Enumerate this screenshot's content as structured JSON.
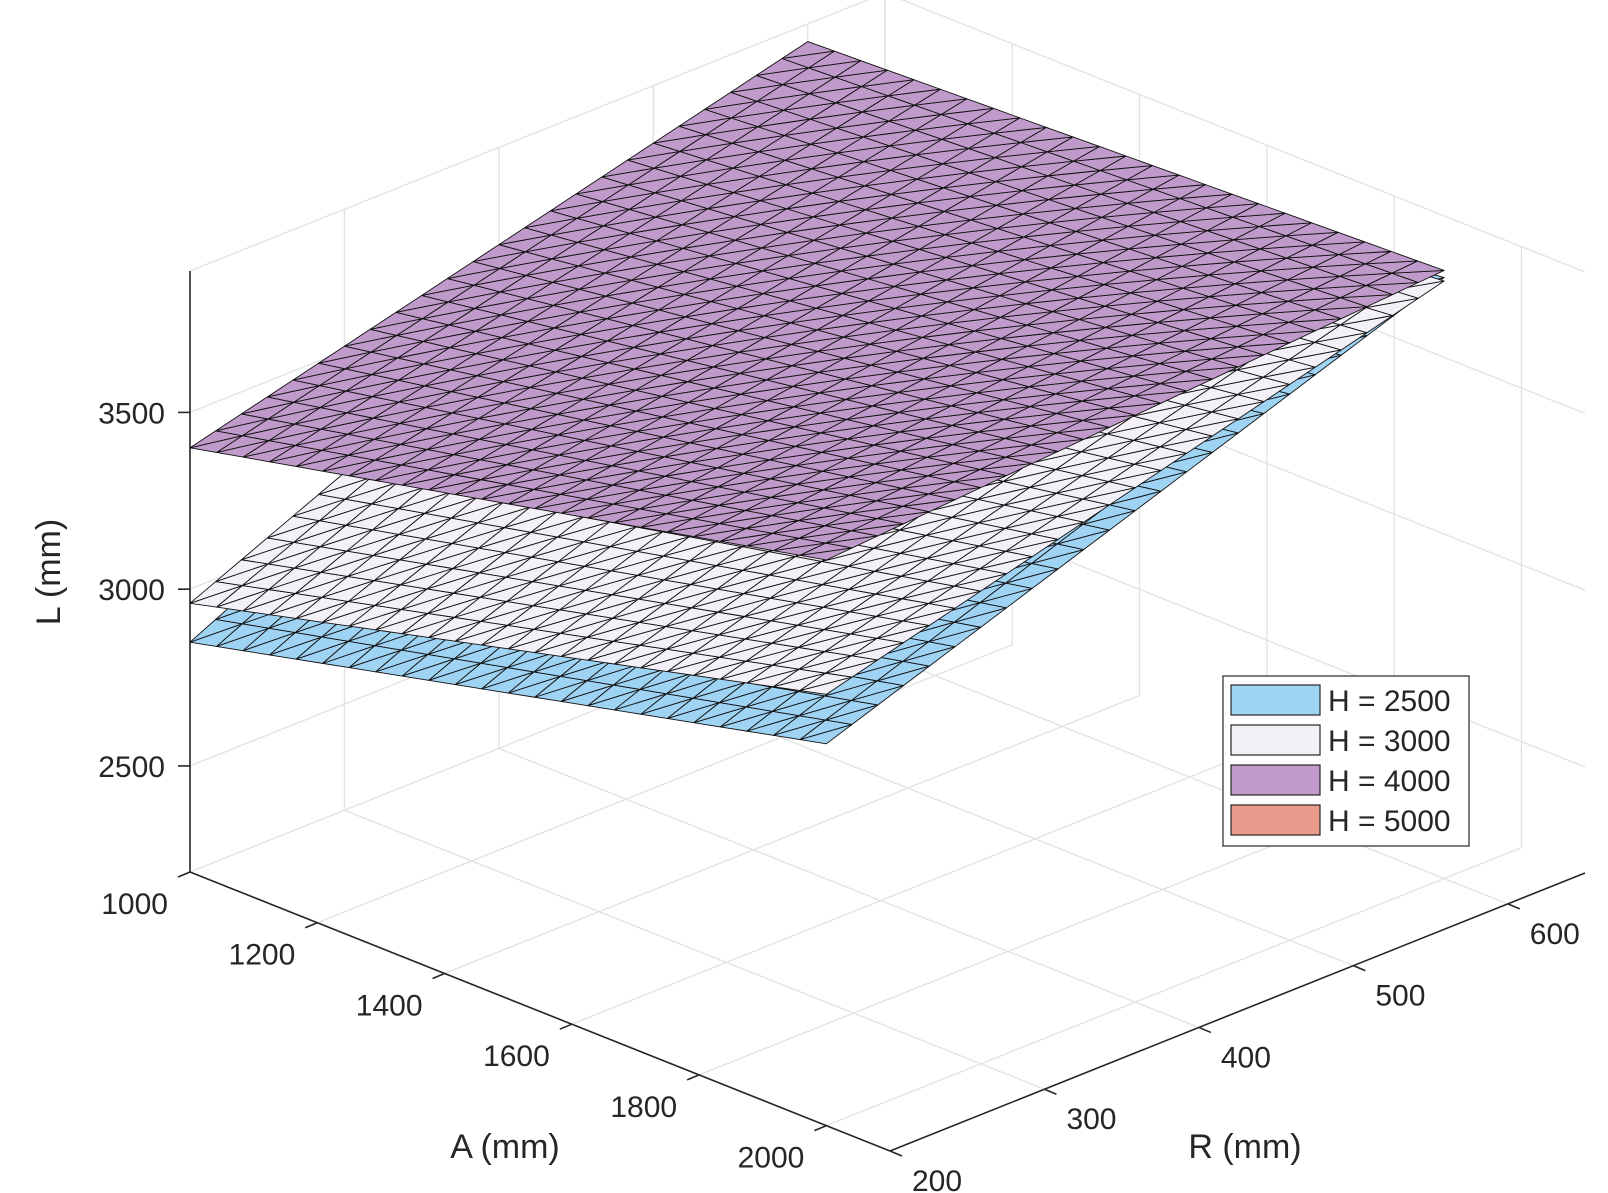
{
  "chart_data": {
    "type": "surface",
    "xlabel": "A (mm)",
    "ylabel": "R (mm)",
    "zlabel": "L (mm)",
    "xlim": [
      1000,
      2100
    ],
    "ylim": [
      200,
      650
    ],
    "zlim": [
      2200,
      3900
    ],
    "x_ticks": [
      1000,
      1200,
      1400,
      1600,
      1800,
      2000
    ],
    "y_ticks": [
      200,
      300,
      400,
      500,
      600
    ],
    "z_ticks": [
      2500,
      3000,
      3500
    ],
    "grid": true,
    "legend_position": "right",
    "mesh": {
      "a_range": [
        1000,
        2000
      ],
      "r_range": [
        200,
        600
      ],
      "steps": 24
    },
    "series": [
      {
        "name": "H = 2500",
        "color": "#9fd3f4",
        "L_at_corners": {
          "A1000_R200": 2850,
          "A2000_R200": 3280,
          "A1000_R600": 3700,
          "A2000_R600": 3900
        }
      },
      {
        "name": "H = 3000",
        "color": "#f4f0f7",
        "L_at_corners": {
          "A1000_R200": 2960,
          "A2000_R200": 3420,
          "A1000_R600": 3740,
          "A2000_R600": 3890
        }
      },
      {
        "name": "H = 4000",
        "color": "#c09aca",
        "L_at_corners": {
          "A1000_R200": 3400,
          "A2000_R200": 3800,
          "A1000_R600": 3850,
          "A2000_R600": 3920
        }
      },
      {
        "name": "H = 5000",
        "color": "#ea9a8a"
      }
    ]
  }
}
